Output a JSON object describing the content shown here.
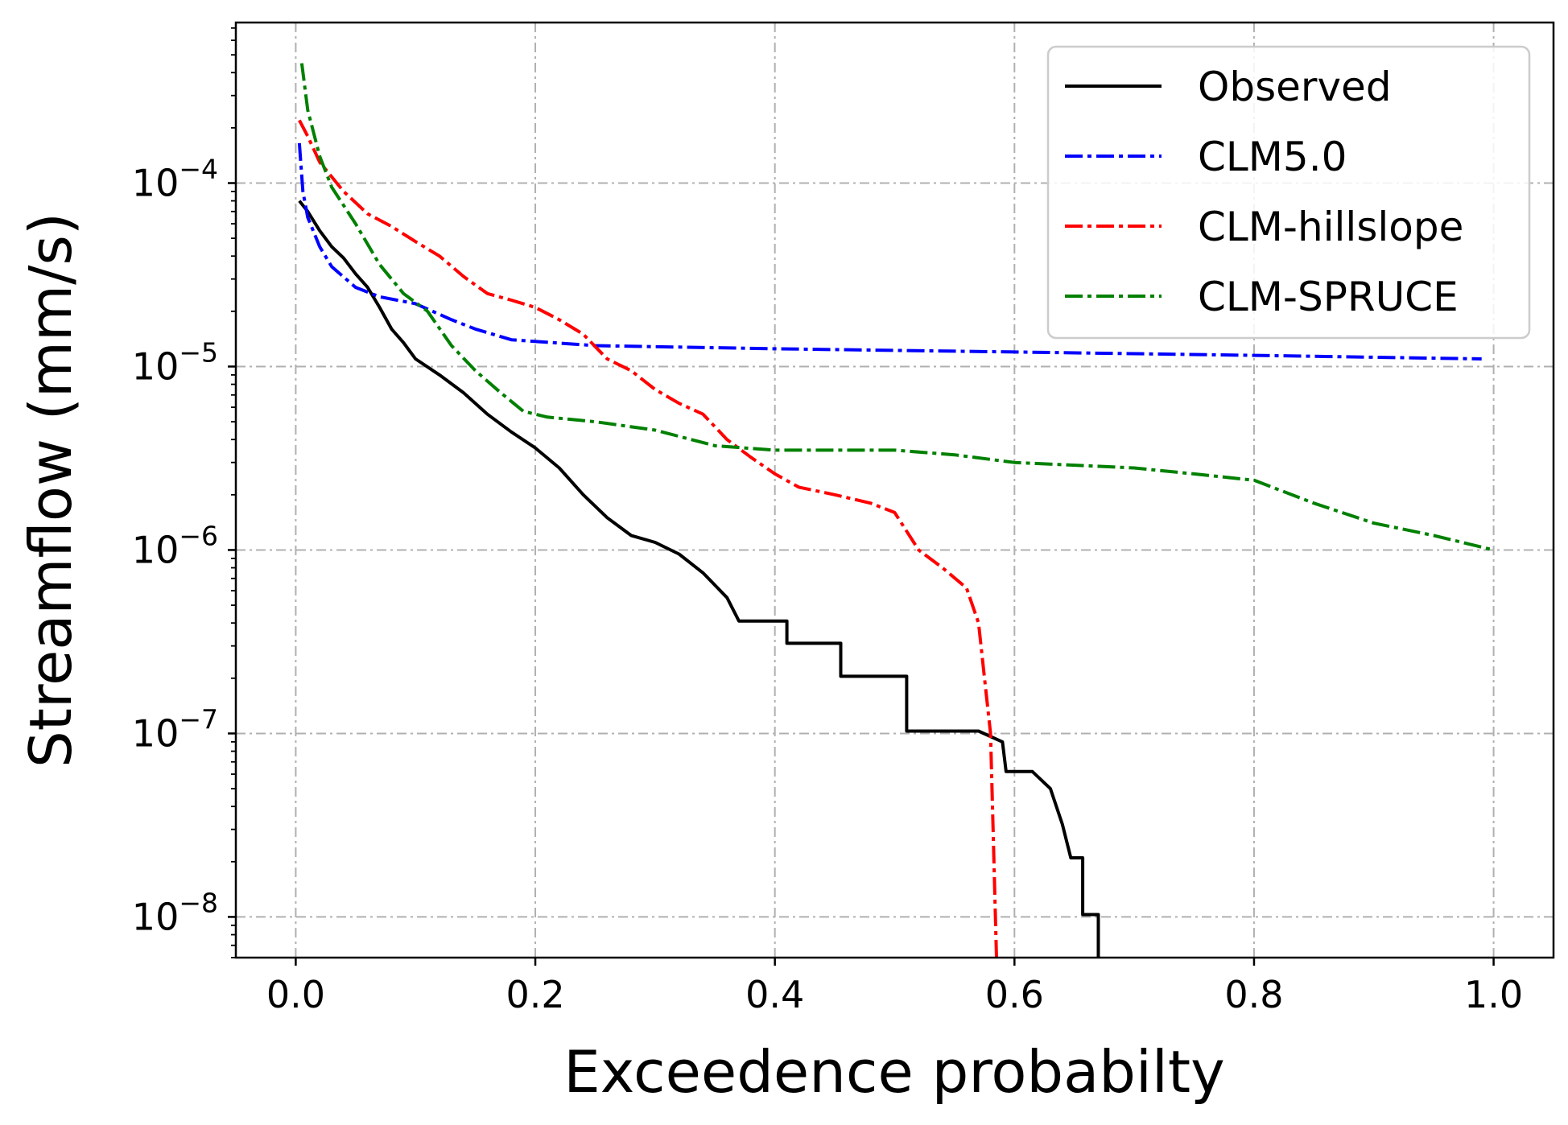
{
  "chart_data": {
    "type": "line",
    "title": "",
    "xlabel": "Exceedence probabilty",
    "ylabel": "Streamflow (mm/s)",
    "xscale": "linear",
    "yscale": "log",
    "xlim": [
      -0.05,
      1.05
    ],
    "ylim": [
      6e-09,
      0.00075
    ],
    "grid": true,
    "legend_position": "top-right",
    "x_ticks": [
      {
        "value": 0.0,
        "label": "0.0"
      },
      {
        "value": 0.2,
        "label": "0.2"
      },
      {
        "value": 0.4,
        "label": "0.4"
      },
      {
        "value": 0.6,
        "label": "0.6"
      },
      {
        "value": 0.8,
        "label": "0.8"
      },
      {
        "value": 1.0,
        "label": "1.0"
      }
    ],
    "y_ticks": [
      {
        "value": 0.0001,
        "base": "10",
        "exp": "−4"
      },
      {
        "value": 1e-05,
        "base": "10",
        "exp": "−5"
      },
      {
        "value": 1e-06,
        "base": "10",
        "exp": "−6"
      },
      {
        "value": 1e-07,
        "base": "10",
        "exp": "−7"
      },
      {
        "value": 1e-08,
        "base": "10",
        "exp": "−8"
      }
    ],
    "series": [
      {
        "name": "Observed",
        "color": "#000000",
        "style": "solid",
        "points": [
          [
            0.003,
            8e-05
          ],
          [
            0.01,
            7e-05
          ],
          [
            0.02,
            5.5e-05
          ],
          [
            0.03,
            4.5e-05
          ],
          [
            0.04,
            3.9e-05
          ],
          [
            0.05,
            3.2e-05
          ],
          [
            0.06,
            2.7e-05
          ],
          [
            0.07,
            2.1e-05
          ],
          [
            0.08,
            1.6e-05
          ],
          [
            0.09,
            1.35e-05
          ],
          [
            0.1,
            1.1e-05
          ],
          [
            0.12,
            9e-06
          ],
          [
            0.14,
            7.2e-06
          ],
          [
            0.16,
            5.5e-06
          ],
          [
            0.18,
            4.4e-06
          ],
          [
            0.2,
            3.6e-06
          ],
          [
            0.22,
            2.8e-06
          ],
          [
            0.24,
            2e-06
          ],
          [
            0.26,
            1.5e-06
          ],
          [
            0.28,
            1.2e-06
          ],
          [
            0.3,
            1.1e-06
          ],
          [
            0.32,
            9.5e-07
          ],
          [
            0.34,
            7.5e-07
          ],
          [
            0.36,
            5.5e-07
          ],
          [
            0.37,
            4.1e-07
          ],
          [
            0.41,
            4.1e-07
          ],
          [
            0.41,
            3.1e-07
          ],
          [
            0.455,
            3.1e-07
          ],
          [
            0.455,
            2.05e-07
          ],
          [
            0.51,
            2.05e-07
          ],
          [
            0.51,
            1.03e-07
          ],
          [
            0.57,
            1.03e-07
          ],
          [
            0.59,
            9e-08
          ],
          [
            0.593,
            6.2e-08
          ],
          [
            0.615,
            6.2e-08
          ],
          [
            0.63,
            5e-08
          ],
          [
            0.64,
            3.2e-08
          ],
          [
            0.647,
            2.1e-08
          ],
          [
            0.657,
            2.1e-08
          ],
          [
            0.657,
            1.03e-08
          ],
          [
            0.67,
            1.03e-08
          ],
          [
            0.67,
            5.5e-09
          ]
        ]
      },
      {
        "name": "CLM5.0",
        "color": "#0000ff",
        "style": "dashdot",
        "points": [
          [
            0.003,
            0.000165
          ],
          [
            0.006,
            9e-05
          ],
          [
            0.01,
            6.5e-05
          ],
          [
            0.02,
            4.5e-05
          ],
          [
            0.03,
            3.5e-05
          ],
          [
            0.05,
            2.7e-05
          ],
          [
            0.07,
            2.4e-05
          ],
          [
            0.1,
            2.2e-05
          ],
          [
            0.13,
            1.8e-05
          ],
          [
            0.15,
            1.6e-05
          ],
          [
            0.18,
            1.4e-05
          ],
          [
            0.25,
            1.3e-05
          ],
          [
            0.4,
            1.25e-05
          ],
          [
            0.6,
            1.2e-05
          ],
          [
            0.8,
            1.15e-05
          ],
          [
            0.99,
            1.1e-05
          ]
        ]
      },
      {
        "name": "CLM-hillslope",
        "color": "#ff0000",
        "style": "dashdot",
        "points": [
          [
            0.003,
            0.00022
          ],
          [
            0.01,
            0.00018
          ],
          [
            0.02,
            0.00013
          ],
          [
            0.04,
            9e-05
          ],
          [
            0.06,
            6.8e-05
          ],
          [
            0.08,
            5.8e-05
          ],
          [
            0.1,
            4.8e-05
          ],
          [
            0.12,
            4e-05
          ],
          [
            0.14,
            3.1e-05
          ],
          [
            0.16,
            2.5e-05
          ],
          [
            0.18,
            2.3e-05
          ],
          [
            0.2,
            2.1e-05
          ],
          [
            0.22,
            1.8e-05
          ],
          [
            0.24,
            1.5e-05
          ],
          [
            0.26,
            1.1e-05
          ],
          [
            0.28,
            9.5e-06
          ],
          [
            0.3,
            7.5e-06
          ],
          [
            0.32,
            6.3e-06
          ],
          [
            0.34,
            5.5e-06
          ],
          [
            0.36,
            4e-06
          ],
          [
            0.38,
            3.2e-06
          ],
          [
            0.4,
            2.6e-06
          ],
          [
            0.42,
            2.2e-06
          ],
          [
            0.45,
            2e-06
          ],
          [
            0.48,
            1.8e-06
          ],
          [
            0.5,
            1.6e-06
          ],
          [
            0.52,
            1e-06
          ],
          [
            0.54,
            8e-07
          ],
          [
            0.56,
            6.2e-07
          ],
          [
            0.57,
            4e-07
          ],
          [
            0.575,
            2e-07
          ],
          [
            0.58,
            1e-07
          ],
          [
            0.585,
            6e-09
          ]
        ]
      },
      {
        "name": "CLM-SPRUCE",
        "color": "#008000",
        "style": "dashdot",
        "points": [
          [
            0.005,
            0.00045
          ],
          [
            0.01,
            0.00025
          ],
          [
            0.02,
            0.00014
          ],
          [
            0.03,
            9.5e-05
          ],
          [
            0.05,
            6e-05
          ],
          [
            0.07,
            3.6e-05
          ],
          [
            0.09,
            2.5e-05
          ],
          [
            0.11,
            2e-05
          ],
          [
            0.13,
            1.3e-05
          ],
          [
            0.15,
            9.5e-06
          ],
          [
            0.17,
            7.3e-06
          ],
          [
            0.19,
            5.7e-06
          ],
          [
            0.21,
            5.3e-06
          ],
          [
            0.25,
            5e-06
          ],
          [
            0.3,
            4.5e-06
          ],
          [
            0.35,
            3.7e-06
          ],
          [
            0.4,
            3.5e-06
          ],
          [
            0.45,
            3.5e-06
          ],
          [
            0.5,
            3.5e-06
          ],
          [
            0.55,
            3.3e-06
          ],
          [
            0.6,
            3e-06
          ],
          [
            0.7,
            2.8e-06
          ],
          [
            0.75,
            2.6e-06
          ],
          [
            0.8,
            2.4e-06
          ],
          [
            0.85,
            1.8e-06
          ],
          [
            0.9,
            1.4e-06
          ],
          [
            0.95,
            1.2e-06
          ],
          [
            1.0,
            1e-06
          ]
        ]
      }
    ]
  }
}
